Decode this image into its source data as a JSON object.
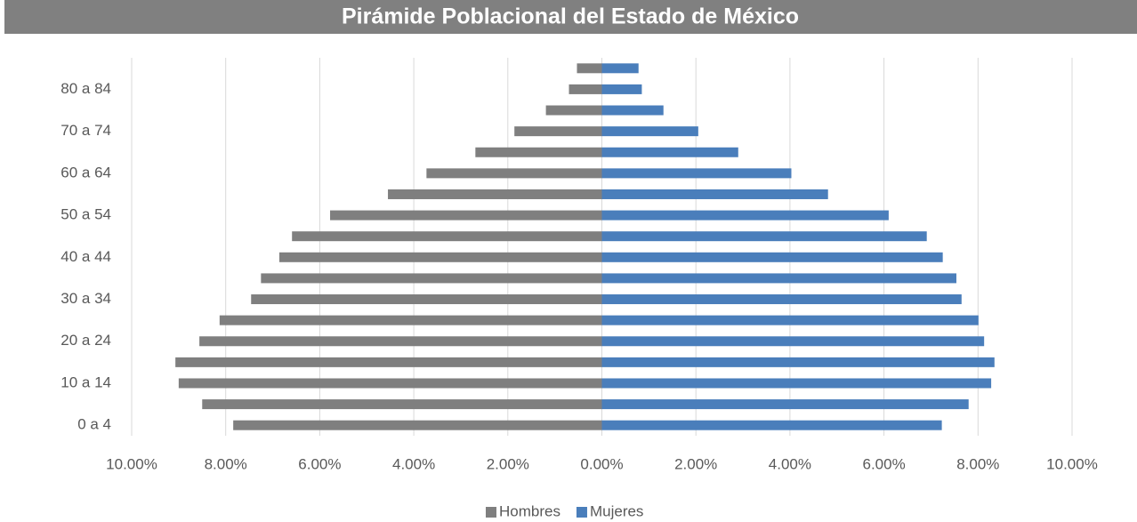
{
  "chart_data": {
    "type": "pyramid",
    "title": "Pirámide Poblacional del Estado de México",
    "categories": [
      "0 a 4",
      null,
      "10 a 14",
      null,
      "20 a 24",
      null,
      "30 a 34",
      null,
      "40 a 44",
      null,
      "50 a 54",
      null,
      "60 a 64",
      null,
      "70 a 74",
      null,
      "80 a 84",
      null
    ],
    "series": [
      {
        "name": "Hombres",
        "color": "#7f7f7f",
        "values": [
          -7.84,
          -8.5,
          -9.0,
          -9.07,
          -8.56,
          -8.13,
          -7.46,
          -7.25,
          -6.86,
          -6.59,
          -5.78,
          -4.55,
          -3.73,
          -2.69,
          -1.86,
          -1.19,
          -0.7,
          -0.53
        ]
      },
      {
        "name": "Mujeres",
        "color": "#4a7ebb",
        "values": [
          7.23,
          7.8,
          8.28,
          8.35,
          8.13,
          8.01,
          7.65,
          7.54,
          7.25,
          6.91,
          6.1,
          4.81,
          4.03,
          2.9,
          2.05,
          1.31,
          0.85,
          0.78
        ]
      }
    ],
    "xlim": [
      -10,
      10
    ],
    "xticks": [
      {
        "value": -10,
        "label": "10.00%"
      },
      {
        "value": -8,
        "label": "8.00%"
      },
      {
        "value": -6,
        "label": "6.00%"
      },
      {
        "value": -4,
        "label": "4.00%"
      },
      {
        "value": -2,
        "label": "2.00%"
      },
      {
        "value": 0,
        "label": "0.00%"
      },
      {
        "value": 2,
        "label": "2.00%"
      },
      {
        "value": 4,
        "label": "4.00%"
      },
      {
        "value": 6,
        "label": "6.00%"
      },
      {
        "value": 8,
        "label": "8.00%"
      },
      {
        "value": 10,
        "label": "10.00%"
      }
    ],
    "grid": true,
    "legend": "bottom"
  }
}
